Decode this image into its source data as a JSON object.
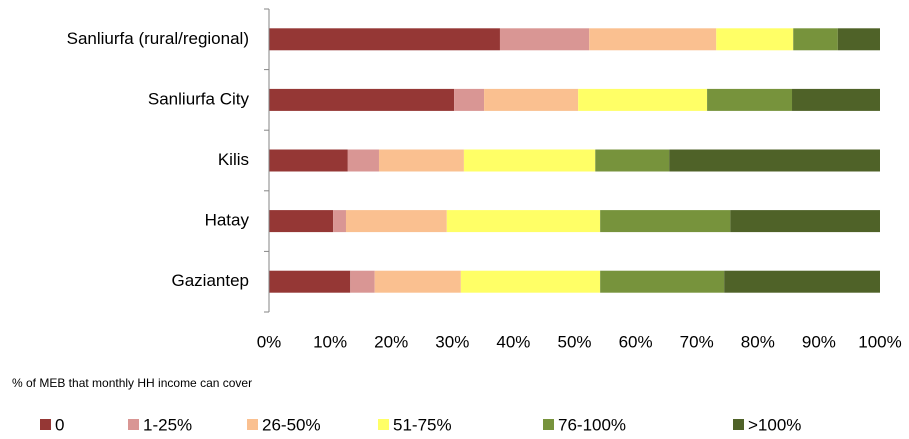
{
  "chart_data": {
    "type": "stacked_barh",
    "subtitle": "% of MEB that monthly HH income can cover",
    "categories": [
      "Sanliurfa (rural/regional)",
      "Sanliurfa City",
      "Kilis",
      "Hatay",
      "Gaziantep"
    ],
    "series": [
      {
        "name": "0",
        "color": "#953735",
        "values": [
          37.8,
          30.3,
          12.9,
          10.5,
          13.3
        ]
      },
      {
        "name": "1-25%",
        "color": "#d99694",
        "values": [
          14.6,
          4.9,
          5.1,
          2.1,
          4.0
        ]
      },
      {
        "name": "26-50%",
        "color": "#fac090",
        "values": [
          20.8,
          15.4,
          13.9,
          16.5,
          14.1
        ]
      },
      {
        "name": "51-75%",
        "color": "#ffff66",
        "values": [
          12.6,
          21.1,
          21.5,
          25.1,
          22.8
        ]
      },
      {
        "name": "76-100%",
        "color": "#77933c",
        "values": [
          7.3,
          13.9,
          12.1,
          21.3,
          20.3
        ]
      },
      {
        "name": ">100%",
        "color": "#4f6228",
        "values": [
          6.9,
          14.4,
          34.5,
          24.5,
          25.5
        ]
      }
    ],
    "xlim": [
      0,
      100
    ],
    "xticks": [
      {
        "value": 0,
        "label": "0%"
      },
      {
        "value": 10,
        "label": "10%"
      },
      {
        "value": 20,
        "label": "20%"
      },
      {
        "value": 30,
        "label": "30%"
      },
      {
        "value": 40,
        "label": "40%"
      },
      {
        "value": 50,
        "label": "50%"
      },
      {
        "value": 60,
        "label": "60%"
      },
      {
        "value": 70,
        "label": "70%"
      },
      {
        "value": 80,
        "label": "80%"
      },
      {
        "value": 90,
        "label": "90%"
      },
      {
        "value": 100,
        "label": "100%"
      }
    ],
    "legend": "bottom"
  }
}
